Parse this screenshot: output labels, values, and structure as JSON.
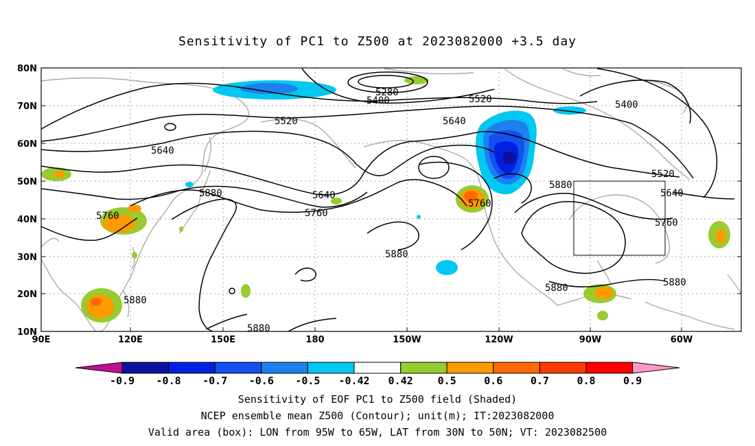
{
  "title": "Sensitivity of PC1 to Z500 at 2023082000 +3.5 day",
  "lat_labels": [
    "80N",
    "70N",
    "60N",
    "50N",
    "40N",
    "30N",
    "20N",
    "10N"
  ],
  "lon_labels": [
    "90E",
    "120E",
    "150E",
    "180",
    "150W",
    "120W",
    "90W",
    "60W"
  ],
  "contour_labels": [
    {
      "text": "5280"
    },
    {
      "text": "5400"
    },
    {
      "text": "5520"
    },
    {
      "text": "5400"
    },
    {
      "text": "5520"
    },
    {
      "text": "5640"
    },
    {
      "text": "5640"
    },
    {
      "text": "5520"
    },
    {
      "text": "5640"
    },
    {
      "text": "5880"
    },
    {
      "text": "5880"
    },
    {
      "text": "5640"
    },
    {
      "text": "5760"
    },
    {
      "text": "5760"
    },
    {
      "text": "5760"
    },
    {
      "text": "5760"
    },
    {
      "text": "5880"
    },
    {
      "text": "5880"
    },
    {
      "text": "5880"
    },
    {
      "text": "5880"
    },
    {
      "text": "5880"
    }
  ],
  "colorbar": {
    "labels": [
      "-0.9",
      "-0.8",
      "-0.7",
      "-0.6",
      "-0.5",
      "-0.42",
      "0.42",
      "0.5",
      "0.6",
      "0.7",
      "0.8",
      "0.9"
    ],
    "colors": [
      "#1010a0",
      "#0020e0",
      "#1450f0",
      "#1e80f0",
      "#00c8f0",
      "#ffffff",
      "#96cc30",
      "#ff9a00",
      "#ff6a00",
      "#ff3a00",
      "#ff0000"
    ],
    "end_left_color": "#c01090",
    "end_right_color": "#ff98c8"
  },
  "footer": {
    "line1": "Sensitivity of EOF PC1 to Z500 field (Shaded)",
    "line2": "NCEP ensemble mean Z500 (Contour); unit(m); IT:2023082000",
    "line3": "Valid area (box): LON from 95W to 65W, LAT from 30N to 50N; VT: 2023082500"
  }
}
